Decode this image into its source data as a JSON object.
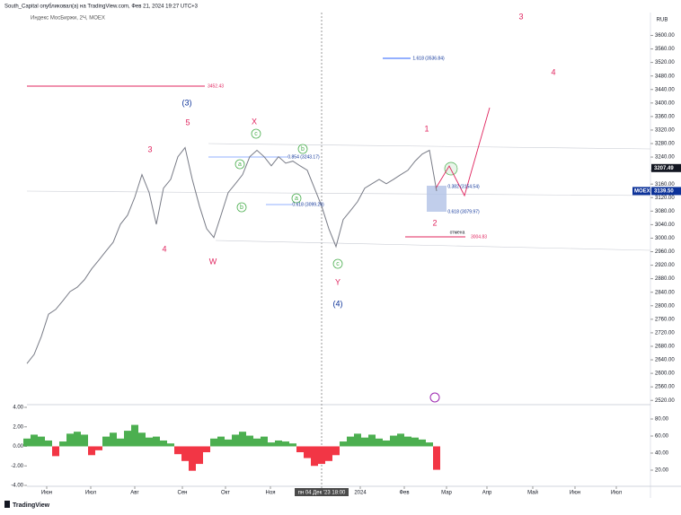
{
  "header": {
    "title": "South_Capital опубликовал(а) на TradingView.com, Фев 21, 2024 19:27 UTC+3",
    "footer": "TradingView"
  },
  "chart_data": [
    {
      "type": "line",
      "title": "Индекс МосБиржи, 2Ч, MOEX",
      "currency": "RUB",
      "color": "#787b86",
      "values": [
        2629,
        2656,
        2709,
        2775,
        2789,
        2815,
        2842,
        2855,
        2877,
        2909,
        2935,
        2962,
        2988,
        3041,
        3068,
        3121,
        3188,
        3135,
        3041,
        3148,
        3174,
        3241,
        3268,
        3174,
        3095,
        3028,
        3002,
        3068,
        3135,
        3161,
        3188,
        3241,
        3260,
        3241,
        3214,
        3241,
        3222,
        3228,
        3214,
        3201,
        3148,
        3095,
        3028,
        2975,
        3055,
        3081,
        3108,
        3148,
        3161,
        3174,
        3161,
        3174,
        3188,
        3201,
        3228,
        3249,
        3260,
        3139.5
      ],
      "xlim": [
        0,
        86.75
      ],
      "ylim": [
        2510,
        3665
      ],
      "xticks": [
        {
          "value": 2.75,
          "label": "Июн"
        },
        {
          "value": 8.875,
          "label": "Июл"
        },
        {
          "value": 15,
          "label": "Авг"
        },
        {
          "value": 21.625,
          "label": "Сен"
        },
        {
          "value": 27.625,
          "label": "Окт"
        },
        {
          "value": 33.875,
          "label": "Ноя"
        },
        {
          "value": 41,
          "label": "пн 04 Дек '23  18:00"
        },
        {
          "value": 46.375,
          "label": "2024"
        },
        {
          "value": 52.5,
          "label": "Фев"
        },
        {
          "value": 58.375,
          "label": "Мар"
        },
        {
          "value": 64,
          "label": "Апр"
        },
        {
          "value": 70.375,
          "label": "Май"
        },
        {
          "value": 76.25,
          "label": "Июн"
        },
        {
          "value": 82,
          "label": "Июл"
        }
      ],
      "yticks": [
        {
          "value": 3600,
          "label": "3600.00"
        },
        {
          "value": 3560,
          "label": "3560.00"
        },
        {
          "value": 3520,
          "label": "3520.00"
        },
        {
          "value": 3480,
          "label": "3480.00"
        },
        {
          "value": 3440,
          "label": "3440.00"
        },
        {
          "value": 3400,
          "label": "3400.00"
        },
        {
          "value": 3360,
          "label": "3360.00"
        },
        {
          "value": 3320,
          "label": "3320.00"
        },
        {
          "value": 3280,
          "label": "3280.00"
        },
        {
          "value": 3240,
          "label": "3240.00"
        },
        {
          "value": 3200,
          "label": "3200.00"
        },
        {
          "value": 3160,
          "label": "3160.00"
        },
        {
          "value": 3120,
          "label": "3120.00"
        },
        {
          "value": 3080,
          "label": "3080.00"
        },
        {
          "value": 3040,
          "label": "3040.00"
        },
        {
          "value": 3000,
          "label": "3000.00"
        },
        {
          "value": 2960,
          "label": "2960.00"
        },
        {
          "value": 2920,
          "label": "2920.00"
        },
        {
          "value": 2880,
          "label": "2880.00"
        },
        {
          "value": 2840,
          "label": "2840.00"
        },
        {
          "value": 2800,
          "label": "2800.00"
        },
        {
          "value": 2760,
          "label": "2760.00"
        },
        {
          "value": 2720,
          "label": "2720.00"
        },
        {
          "value": 2680,
          "label": "2680.00"
        },
        {
          "value": 2640,
          "label": "2640.00"
        },
        {
          "value": 2600,
          "label": "2600.00"
        },
        {
          "value": 2560,
          "label": "2560.00"
        },
        {
          "value": 2520,
          "label": "2520.00"
        }
      ],
      "price_tags": [
        {
          "value": 3207.49,
          "label": "3207.49",
          "color": "#131722"
        },
        {
          "value": 3139.5,
          "label": "3139.50",
          "name": "MOEX",
          "color": "#0c3299"
        }
      ],
      "annotations": [
        "3",
        "4",
        "(3)",
        "5",
        "3",
        "4",
        "W",
        "X",
        "Y",
        "(4)",
        "1",
        "2",
        "c",
        "b",
        "a",
        "b",
        "a",
        "c",
        "3452.43",
        "1.618 (3536.84)",
        "0.854 (3243.17)",
        "0.618 (3099.26)",
        "0.382 (3154.54)",
        "0.618 (3079.97)",
        "3004.83",
        "отмена"
      ]
    },
    {
      "type": "bar",
      "positive_color": "#4caf50",
      "negative_color": "#f23645",
      "values": [
        0.8,
        1.2,
        1.0,
        0.6,
        -1.0,
        0.5,
        1.3,
        1.5,
        1.2,
        -0.9,
        -0.4,
        1.0,
        1.4,
        0.8,
        1.6,
        2.2,
        1.4,
        0.9,
        1.0,
        0.6,
        0.3,
        -0.8,
        -1.5,
        -2.5,
        -1.8,
        -0.6,
        0.8,
        1.0,
        0.7,
        1.2,
        1.5,
        1.1,
        0.8,
        1.0,
        0.4,
        0.6,
        0.5,
        0.3,
        -0.6,
        -1.2,
        -2.0,
        -1.8,
        -1.5,
        -0.9,
        0.5,
        1.0,
        1.3,
        0.9,
        1.2,
        0.8,
        0.6,
        1.1,
        1.3,
        1.0,
        0.9,
        0.7,
        0.4,
        -2.4
      ],
      "xlim": [
        0,
        86.75
      ],
      "ylim": [
        -4,
        4
      ],
      "yticks": [
        {
          "value": 4,
          "label": "4.00"
        },
        {
          "value": 2,
          "label": "2.00"
        },
        {
          "value": 0,
          "label": "0.00"
        },
        {
          "value": -2,
          "label": "-2.00"
        },
        {
          "value": -4,
          "label": "-4.00"
        }
      ],
      "y2lim": [
        2.1,
        93.7
      ],
      "y2ticks": [
        {
          "value": 80,
          "label": "80.00"
        },
        {
          "value": 60,
          "label": "60.00"
        },
        {
          "value": 40,
          "label": "40.00"
        },
        {
          "value": 20,
          "label": "20.00"
        }
      ]
    }
  ]
}
